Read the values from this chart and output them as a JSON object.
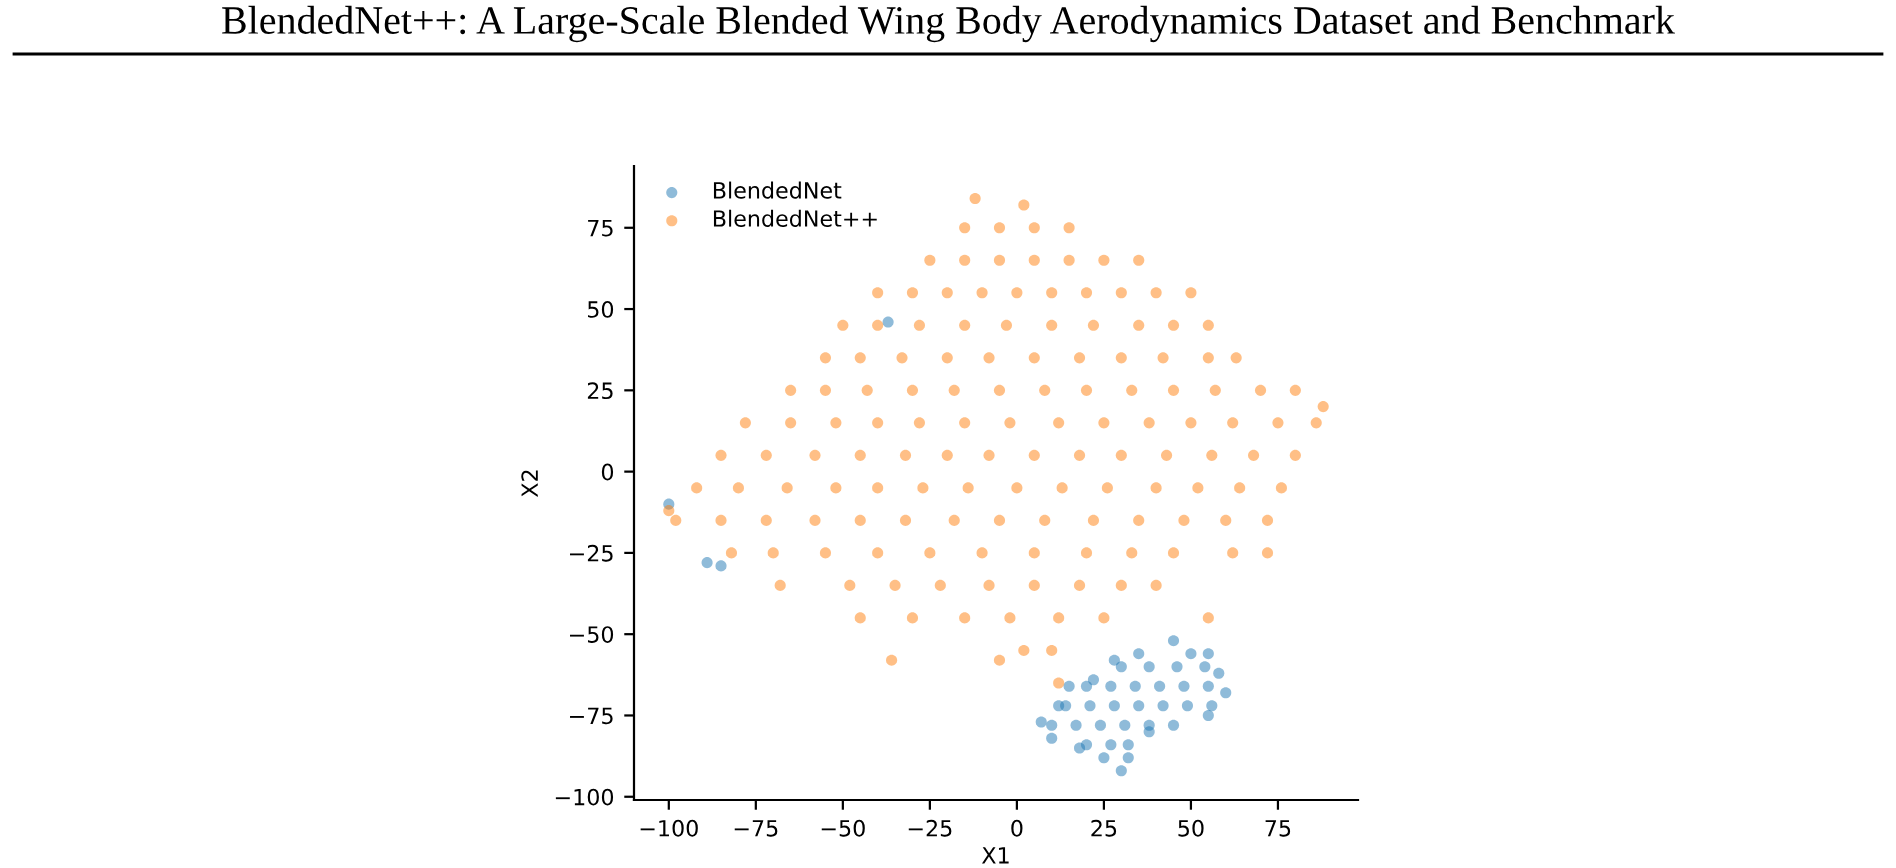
{
  "chart_data": {
    "type": "scatter",
    "title": "BlendedNet++: A Large-Scale Blended Wing Body Aerodynamics Dataset and Benchmark",
    "xlabel": "X1",
    "ylabel": "X2",
    "xlim": [
      -110,
      98
    ],
    "ylim": [
      -101,
      94
    ],
    "xticks": [
      -100,
      -75,
      -50,
      -25,
      0,
      25,
      50,
      75
    ],
    "yticks": [
      -100,
      -75,
      -50,
      -25,
      0,
      25,
      50,
      75
    ],
    "marker": "circle",
    "legend": "top left",
    "grid": false,
    "series": [
      {
        "name": "BlendedNet",
        "color": "#1f77b4",
        "x": [
          7,
          12,
          15,
          22,
          28,
          35,
          45,
          50,
          55,
          58,
          60,
          55,
          45,
          38,
          32,
          30,
          25,
          18,
          10,
          30,
          38,
          46,
          54,
          20,
          27,
          34,
          41,
          48,
          55,
          14,
          21,
          28,
          35,
          42,
          49,
          56,
          10,
          17,
          24,
          31,
          38,
          20,
          27,
          32,
          -89,
          -85,
          -100,
          -37
        ],
        "values": [
          -77,
          -72,
          -66,
          -64,
          -58,
          -56,
          -52,
          -56,
          -56,
          -62,
          -68,
          -75,
          -78,
          -80,
          -88,
          -92,
          -88,
          -85,
          -82,
          -60,
          -60,
          -60,
          -60,
          -66,
          -66,
          -66,
          -66,
          -66,
          -66,
          -72,
          -72,
          -72,
          -72,
          -72,
          -72,
          -72,
          -78,
          -78,
          -78,
          -78,
          -78,
          -84,
          -84,
          -84,
          -28,
          -29,
          -10,
          46
        ]
      },
      {
        "name": "BlendedNet++",
        "color": "#ff7f0e",
        "x": [
          -15,
          -5,
          5,
          15,
          -25,
          -15,
          -5,
          5,
          15,
          25,
          35,
          -40,
          -30,
          -20,
          -10,
          0,
          10,
          20,
          30,
          40,
          50,
          -50,
          -40,
          -28,
          -15,
          -3,
          10,
          22,
          35,
          45,
          55,
          -55,
          -45,
          -33,
          -20,
          -8,
          5,
          18,
          30,
          42,
          55,
          63,
          -65,
          -55,
          -43,
          -30,
          -18,
          -5,
          8,
          20,
          33,
          45,
          57,
          70,
          80,
          -78,
          -65,
          -52,
          -40,
          -28,
          -15,
          -2,
          12,
          25,
          38,
          50,
          62,
          75,
          86,
          -85,
          -72,
          -58,
          -45,
          -32,
          -20,
          -8,
          5,
          18,
          30,
          43,
          56,
          68,
          80,
          -92,
          -80,
          -66,
          -52,
          -40,
          -27,
          -14,
          0,
          13,
          26,
          40,
          52,
          64,
          76,
          -98,
          -85,
          -72,
          -58,
          -45,
          -32,
          -18,
          -5,
          8,
          22,
          35,
          48,
          60,
          72,
          -82,
          -70,
          -55,
          -40,
          -25,
          -10,
          5,
          20,
          33,
          45,
          62,
          72,
          -68,
          -48,
          -35,
          -22,
          -8,
          5,
          18,
          30,
          40,
          -45,
          -30,
          -15,
          -2,
          12,
          25,
          55,
          -36,
          -5,
          2,
          10,
          -12,
          2,
          88,
          -100,
          12
        ],
        "values": [
          75,
          75,
          75,
          75,
          65,
          65,
          65,
          65,
          65,
          65,
          65,
          55,
          55,
          55,
          55,
          55,
          55,
          55,
          55,
          55,
          55,
          45,
          45,
          45,
          45,
          45,
          45,
          45,
          45,
          45,
          45,
          35,
          35,
          35,
          35,
          35,
          35,
          35,
          35,
          35,
          35,
          35,
          25,
          25,
          25,
          25,
          25,
          25,
          25,
          25,
          25,
          25,
          25,
          25,
          25,
          15,
          15,
          15,
          15,
          15,
          15,
          15,
          15,
          15,
          15,
          15,
          15,
          15,
          15,
          5,
          5,
          5,
          5,
          5,
          5,
          5,
          5,
          5,
          5,
          5,
          5,
          5,
          5,
          -5,
          -5,
          -5,
          -5,
          -5,
          -5,
          -5,
          -5,
          -5,
          -5,
          -5,
          -5,
          -5,
          -5,
          -15,
          -15,
          -15,
          -15,
          -15,
          -15,
          -15,
          -15,
          -15,
          -15,
          -15,
          -15,
          -15,
          -15,
          -25,
          -25,
          -25,
          -25,
          -25,
          -25,
          -25,
          -25,
          -25,
          -25,
          -25,
          -25,
          -35,
          -35,
          -35,
          -35,
          -35,
          -35,
          -35,
          -35,
          -35,
          -45,
          -45,
          -45,
          -45,
          -45,
          -45,
          -45,
          -58,
          -58,
          -55,
          -55,
          84,
          82,
          20,
          -12,
          -65
        ]
      }
    ]
  }
}
